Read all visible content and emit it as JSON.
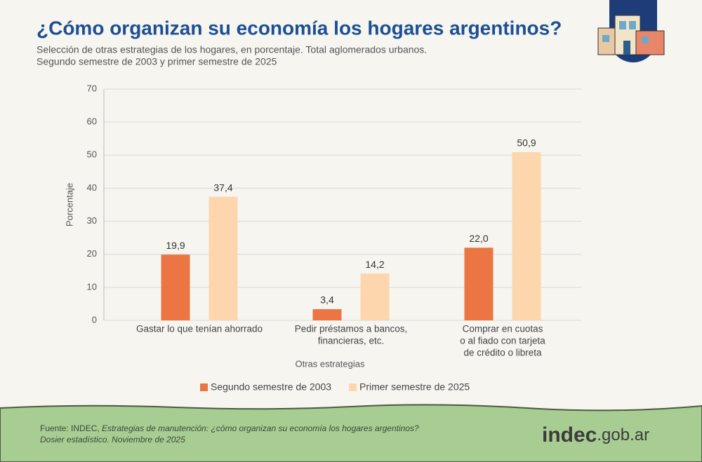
{
  "chart_data": {
    "type": "bar",
    "title": "¿Cómo organizan su economía los hogares argentinos?",
    "subtitle": [
      "Selección de otras estrategias de los hogares, en porcentaje. Total aglomerados urbanos.",
      "Segundo semestre de 2003 y primer semestre de 2025"
    ],
    "y_label": "Porcentaje",
    "x_label": "Otras estrategias",
    "categories": [
      [
        "Gastar lo que tenían ahorrado"
      ],
      [
        "Pedir préstamos a bancos,",
        "financieras, etc."
      ],
      [
        "Comprar en cuotas",
        "o al fiado con tarjeta",
        "de crédito o libreta"
      ]
    ],
    "series": [
      {
        "name": "Segundo semestre de 2003",
        "color": "#ec7643",
        "values": [
          19.9,
          3.4,
          22.0
        ],
        "value_labels": [
          "19,9",
          "3,4",
          "22,0"
        ]
      },
      {
        "name": "Primer semestre de 2025",
        "color": "#fdd6ad",
        "values": [
          37.4,
          14.2,
          50.9
        ],
        "value_labels": [
          "37,4",
          "14,2",
          "50,9"
        ]
      }
    ],
    "ylim": [
      0,
      70
    ],
    "yticks": [
      0,
      10,
      20,
      30,
      40,
      50,
      60,
      70
    ],
    "grid": true,
    "legend": "bottom"
  },
  "source": {
    "prefix": "Fuente: INDEC,",
    "title_lines": [
      "Estrategias de manutención: ¿cómo organizan su economía los hogares argentinos?",
      "Dosier estadístico. Noviembre de 2025"
    ]
  },
  "logo": [
    "indec",
    ".gob.ar"
  ]
}
